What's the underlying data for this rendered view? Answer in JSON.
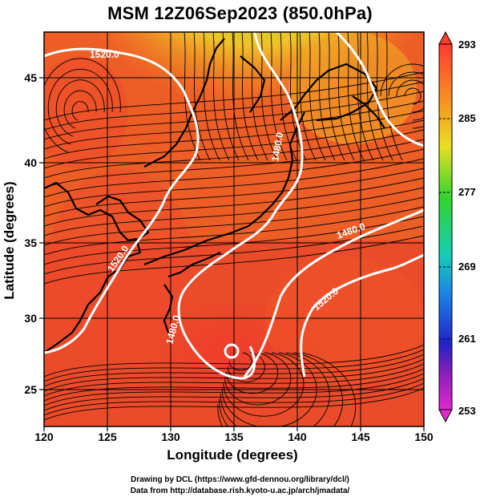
{
  "title": "MSM 12Z06Sep2023 (850.0hPa)",
  "x_axis": {
    "label": "Longitude (degrees)",
    "ticks": [
      "120",
      "125",
      "130",
      "135",
      "140",
      "145",
      "150"
    ]
  },
  "y_axis": {
    "label": "Latitude  (degrees)",
    "ticks": [
      "45",
      "40",
      "35",
      "30",
      "25"
    ]
  },
  "colorbar": {
    "ticks": [
      "293",
      "285",
      "277",
      "269",
      "261",
      "253"
    ]
  },
  "contour_labels": [
    "1520.0",
    "1480.0",
    "1480.0",
    "1520.0",
    "1480.0",
    "1520.0"
  ],
  "credits": {
    "line1": "Drawing by DCL (https://www.gfd-dennou.org/library/dcl/)",
    "line2": "Data from http://database.rish.kyoto-u.ac.jp/arch/jmadata/"
  },
  "colors": {
    "warm": "#e8392a",
    "orange": "#ef7a1e",
    "yellow": "#f3cc2a",
    "green": "#4fd23a",
    "coast": "#000000",
    "contour": "#ffffff"
  }
}
